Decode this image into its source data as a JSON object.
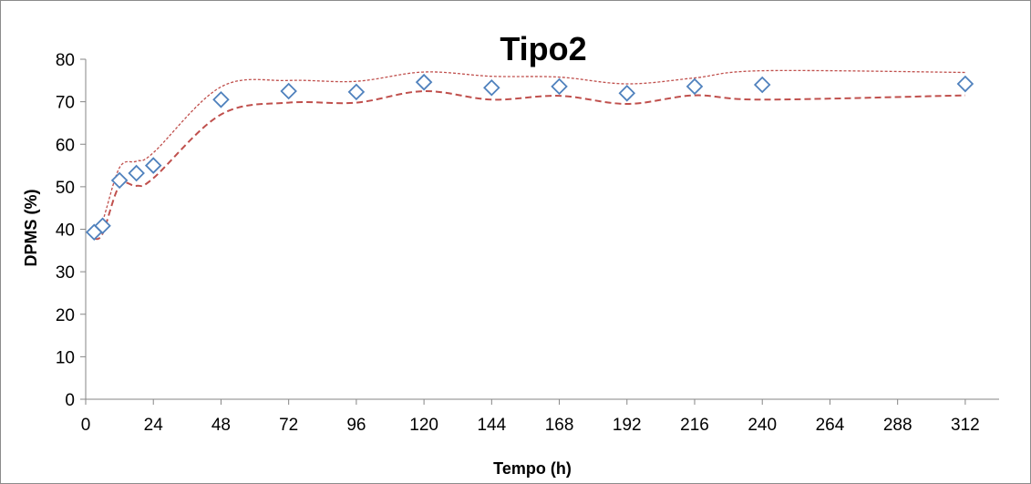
{
  "chart_data": {
    "type": "scatter",
    "title": "Tipo2",
    "xlabel": "Tempo (h)",
    "ylabel": "DPMS (%)",
    "xlim": [
      0,
      324
    ],
    "ylim": [
      0,
      80
    ],
    "xticks": [
      0,
      24,
      48,
      72,
      96,
      120,
      144,
      168,
      192,
      216,
      240,
      264,
      288,
      312
    ],
    "yticks": [
      0,
      10,
      20,
      30,
      40,
      50,
      60,
      70,
      80
    ],
    "grid": false,
    "legend": "none",
    "series": [
      {
        "kind": "markers",
        "marker": "diamond-open",
        "color": "#4f81bd",
        "x": [
          3,
          6,
          12,
          18,
          24,
          48,
          72,
          96,
          120,
          144,
          168,
          192,
          216,
          240,
          312
        ],
        "y": [
          39.3,
          40.8,
          51.5,
          53.2,
          55.0,
          70.5,
          72.5,
          72.3,
          74.6,
          73.3,
          73.6,
          72.0,
          73.6,
          74.0,
          74.2
        ]
      },
      {
        "kind": "upper-band",
        "line": "dotted",
        "color": "#c0504d",
        "x": [
          3,
          6,
          12,
          18,
          24,
          48,
          72,
          96,
          120,
          144,
          168,
          192,
          216,
          240,
          312
        ],
        "y": [
          39.5,
          42.0,
          54.5,
          56.0,
          58.0,
          73.5,
          75.0,
          74.8,
          77.0,
          76.0,
          75.8,
          74.2,
          75.6,
          77.3,
          76.9
        ]
      },
      {
        "kind": "lower-band",
        "line": "dashed",
        "color": "#c0504d",
        "x": [
          3,
          6,
          12,
          18,
          24,
          48,
          72,
          96,
          120,
          144,
          168,
          192,
          216,
          240,
          312
        ],
        "y": [
          37.8,
          39.0,
          50.3,
          50.2,
          52.0,
          67.0,
          69.8,
          69.8,
          72.5,
          70.5,
          71.4,
          69.5,
          71.5,
          70.5,
          71.5
        ]
      }
    ]
  }
}
